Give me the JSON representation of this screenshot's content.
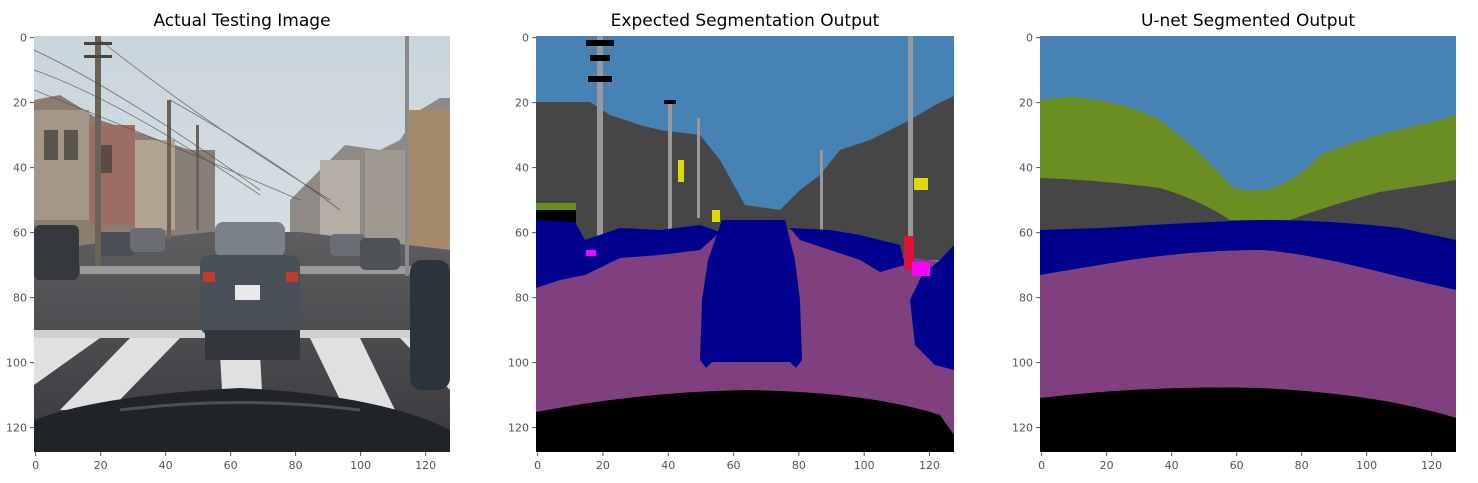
{
  "panels": [
    {
      "title": "Actual Testing Image",
      "kind": "photo",
      "description": "Street scene through a car windshield; grey sedan ahead, crosswalk, houses and power lines"
    },
    {
      "title": "Expected Segmentation Output",
      "kind": "segmentation",
      "class_colors": {
        "sky": "#4682b4",
        "building": "#464646",
        "vegetation": "#6b8e23",
        "vehicle": "#00008e",
        "road": "#804080",
        "ego-car": "#000000",
        "pole": "#999999",
        "sign": "#dcdc00",
        "person": "#dc143c",
        "lane-marking": "#ff00ff"
      }
    },
    {
      "title": "U-net Segmented Output",
      "kind": "segmentation"
    }
  ],
  "axes": {
    "x_ticks": [
      "0",
      "20",
      "40",
      "60",
      "80",
      "100",
      "120"
    ],
    "y_ticks": [
      "0",
      "20",
      "40",
      "60",
      "80",
      "100",
      "120"
    ],
    "range": [
      0,
      127
    ]
  }
}
